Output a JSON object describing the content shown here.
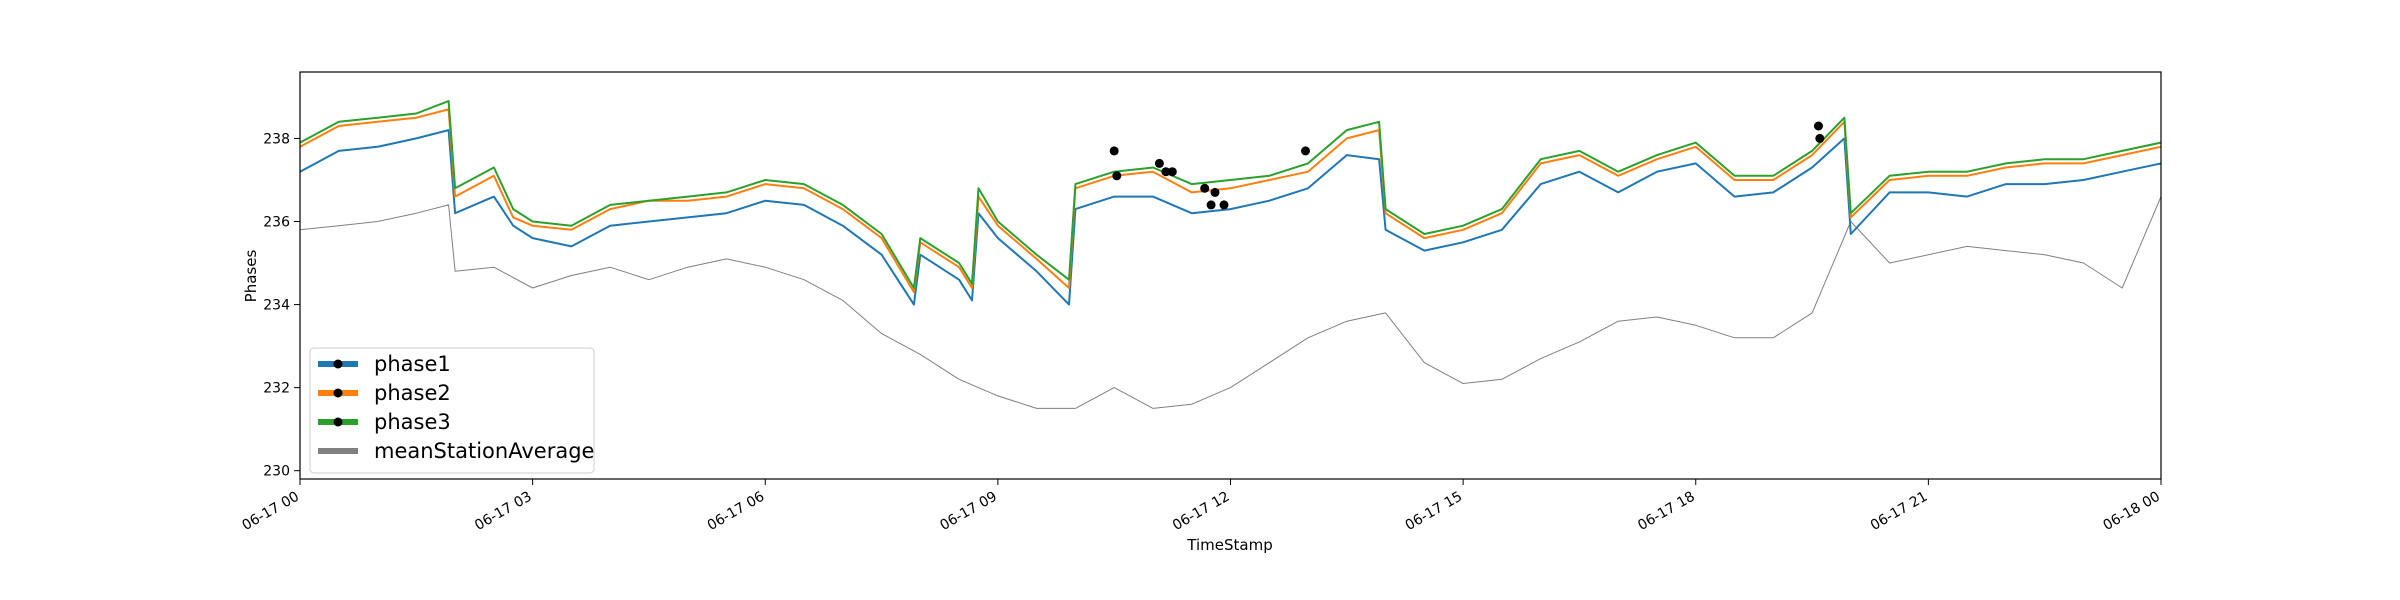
{
  "chart_data": {
    "type": "line",
    "xlabel": "TimeStamp",
    "ylabel": "Phases",
    "xlim": [
      "2017-06-17 00:00",
      "2017-06-18 00:00"
    ],
    "ylim": [
      229.8,
      239.6
    ],
    "x_ticks": [
      {
        "value": "2017-06-17 00:00",
        "label": "06-17 00"
      },
      {
        "value": "2017-06-17 03:00",
        "label": "06-17 03"
      },
      {
        "value": "2017-06-17 06:00",
        "label": "06-17 06"
      },
      {
        "value": "2017-06-17 09:00",
        "label": "06-17 09"
      },
      {
        "value": "2017-06-17 12:00",
        "label": "06-17 12"
      },
      {
        "value": "2017-06-17 15:00",
        "label": "06-17 15"
      },
      {
        "value": "2017-06-17 18:00",
        "label": "06-17 18"
      },
      {
        "value": "2017-06-17 21:00",
        "label": "06-17 21"
      },
      {
        "value": "2017-06-18 00:00",
        "label": "06-18 00"
      }
    ],
    "y_ticks": [
      {
        "value": 230,
        "label": "230"
      },
      {
        "value": 232,
        "label": "232"
      },
      {
        "value": 234,
        "label": "234"
      },
      {
        "value": 236,
        "label": "236"
      },
      {
        "value": 238,
        "label": "238"
      }
    ],
    "legend": {
      "placement": "lower-left"
    },
    "grid": false,
    "series": [
      {
        "name": "phase1",
        "color": "#1f77b4",
        "marker": "black-dot",
        "x": [
          "2017-06-17 00:00",
          "2017-06-17 00:30",
          "2017-06-17 01:00",
          "2017-06-17 01:30",
          "2017-06-17 01:55",
          "2017-06-17 02:00",
          "2017-06-17 02:30",
          "2017-06-17 02:45",
          "2017-06-17 03:00",
          "2017-06-17 03:30",
          "2017-06-17 04:00",
          "2017-06-17 04:30",
          "2017-06-17 05:00",
          "2017-06-17 05:30",
          "2017-06-17 06:00",
          "2017-06-17 06:30",
          "2017-06-17 07:00",
          "2017-06-17 07:30",
          "2017-06-17 07:55",
          "2017-06-17 08:00",
          "2017-06-17 08:30",
          "2017-06-17 08:40",
          "2017-06-17 08:45",
          "2017-06-17 09:00",
          "2017-06-17 09:30",
          "2017-06-17 09:55",
          "2017-06-17 10:00",
          "2017-06-17 10:30",
          "2017-06-17 11:00",
          "2017-06-17 11:30",
          "2017-06-17 12:00",
          "2017-06-17 12:30",
          "2017-06-17 13:00",
          "2017-06-17 13:30",
          "2017-06-17 13:55",
          "2017-06-17 14:00",
          "2017-06-17 14:30",
          "2017-06-17 15:00",
          "2017-06-17 15:30",
          "2017-06-17 16:00",
          "2017-06-17 16:30",
          "2017-06-17 17:00",
          "2017-06-17 17:30",
          "2017-06-17 18:00",
          "2017-06-17 18:30",
          "2017-06-17 19:00",
          "2017-06-17 19:30",
          "2017-06-17 19:55",
          "2017-06-17 20:00",
          "2017-06-17 20:30",
          "2017-06-17 21:00",
          "2017-06-17 21:30",
          "2017-06-17 22:00",
          "2017-06-17 22:30",
          "2017-06-17 23:00",
          "2017-06-17 23:30",
          "2017-06-18 00:00"
        ],
        "values": [
          237.2,
          237.7,
          237.8,
          238.0,
          238.2,
          236.2,
          236.6,
          235.9,
          235.6,
          235.4,
          235.9,
          236.0,
          236.1,
          236.2,
          236.5,
          236.4,
          235.9,
          235.2,
          234.0,
          235.2,
          234.6,
          234.1,
          236.2,
          235.6,
          234.8,
          234.0,
          236.3,
          236.6,
          236.6,
          236.2,
          236.3,
          236.5,
          236.8,
          237.6,
          237.5,
          235.8,
          235.3,
          235.5,
          235.8,
          236.9,
          237.2,
          236.7,
          237.2,
          237.4,
          236.6,
          236.7,
          237.3,
          238.0,
          235.7,
          236.7,
          236.7,
          236.6,
          236.9,
          236.9,
          237.0,
          237.2,
          237.4
        ]
      },
      {
        "name": "phase2",
        "color": "#ff7f0e",
        "marker": "black-dot",
        "x": [
          "2017-06-17 00:00",
          "2017-06-17 00:30",
          "2017-06-17 01:00",
          "2017-06-17 01:30",
          "2017-06-17 01:55",
          "2017-06-17 02:00",
          "2017-06-17 02:30",
          "2017-06-17 02:45",
          "2017-06-17 03:00",
          "2017-06-17 03:30",
          "2017-06-17 04:00",
          "2017-06-17 04:30",
          "2017-06-17 05:00",
          "2017-06-17 05:30",
          "2017-06-17 06:00",
          "2017-06-17 06:30",
          "2017-06-17 07:00",
          "2017-06-17 07:30",
          "2017-06-17 07:55",
          "2017-06-17 08:00",
          "2017-06-17 08:30",
          "2017-06-17 08:40",
          "2017-06-17 08:45",
          "2017-06-17 09:00",
          "2017-06-17 09:30",
          "2017-06-17 09:55",
          "2017-06-17 10:00",
          "2017-06-17 10:30",
          "2017-06-17 11:00",
          "2017-06-17 11:30",
          "2017-06-17 12:00",
          "2017-06-17 12:30",
          "2017-06-17 13:00",
          "2017-06-17 13:30",
          "2017-06-17 13:55",
          "2017-06-17 14:00",
          "2017-06-17 14:30",
          "2017-06-17 15:00",
          "2017-06-17 15:30",
          "2017-06-17 16:00",
          "2017-06-17 16:30",
          "2017-06-17 17:00",
          "2017-06-17 17:30",
          "2017-06-17 18:00",
          "2017-06-17 18:30",
          "2017-06-17 19:00",
          "2017-06-17 19:30",
          "2017-06-17 19:55",
          "2017-06-17 20:00",
          "2017-06-17 20:30",
          "2017-06-17 21:00",
          "2017-06-17 21:30",
          "2017-06-17 22:00",
          "2017-06-17 22:30",
          "2017-06-17 23:00",
          "2017-06-17 23:30",
          "2017-06-18 00:00"
        ],
        "values": [
          237.8,
          238.3,
          238.4,
          238.5,
          238.7,
          236.6,
          237.1,
          236.1,
          235.9,
          235.8,
          236.3,
          236.5,
          236.5,
          236.6,
          236.9,
          236.8,
          236.3,
          235.6,
          234.3,
          235.5,
          234.9,
          234.4,
          236.6,
          235.9,
          235.1,
          234.4,
          236.8,
          237.1,
          237.2,
          236.7,
          236.8,
          237.0,
          237.2,
          238.0,
          238.2,
          236.2,
          235.6,
          235.8,
          236.2,
          237.4,
          237.6,
          237.1,
          237.5,
          237.8,
          237.0,
          237.0,
          237.6,
          238.4,
          236.1,
          237.0,
          237.1,
          237.1,
          237.3,
          237.4,
          237.4,
          237.6,
          237.8
        ]
      },
      {
        "name": "phase3",
        "color": "#2ca02c",
        "marker": "black-dot",
        "x": [
          "2017-06-17 00:00",
          "2017-06-17 00:30",
          "2017-06-17 01:00",
          "2017-06-17 01:30",
          "2017-06-17 01:55",
          "2017-06-17 02:00",
          "2017-06-17 02:30",
          "2017-06-17 02:45",
          "2017-06-17 03:00",
          "2017-06-17 03:30",
          "2017-06-17 04:00",
          "2017-06-17 04:30",
          "2017-06-17 05:00",
          "2017-06-17 05:30",
          "2017-06-17 06:00",
          "2017-06-17 06:30",
          "2017-06-17 07:00",
          "2017-06-17 07:30",
          "2017-06-17 07:55",
          "2017-06-17 08:00",
          "2017-06-17 08:30",
          "2017-06-17 08:40",
          "2017-06-17 08:45",
          "2017-06-17 09:00",
          "2017-06-17 09:30",
          "2017-06-17 09:55",
          "2017-06-17 10:00",
          "2017-06-17 10:30",
          "2017-06-17 11:00",
          "2017-06-17 11:30",
          "2017-06-17 12:00",
          "2017-06-17 12:30",
          "2017-06-17 13:00",
          "2017-06-17 13:30",
          "2017-06-17 13:55",
          "2017-06-17 14:00",
          "2017-06-17 14:30",
          "2017-06-17 15:00",
          "2017-06-17 15:30",
          "2017-06-17 16:00",
          "2017-06-17 16:30",
          "2017-06-17 17:00",
          "2017-06-17 17:30",
          "2017-06-17 18:00",
          "2017-06-17 18:30",
          "2017-06-17 19:00",
          "2017-06-17 19:30",
          "2017-06-17 19:55",
          "2017-06-17 20:00",
          "2017-06-17 20:30",
          "2017-06-17 21:00",
          "2017-06-17 21:30",
          "2017-06-17 22:00",
          "2017-06-17 22:30",
          "2017-06-17 23:00",
          "2017-06-17 23:30",
          "2017-06-18 00:00"
        ],
        "values": [
          237.9,
          238.4,
          238.5,
          238.6,
          238.9,
          236.8,
          237.3,
          236.3,
          236.0,
          235.9,
          236.4,
          236.5,
          236.6,
          236.7,
          237.0,
          236.9,
          236.4,
          235.7,
          234.4,
          235.6,
          235.0,
          234.5,
          236.8,
          236.0,
          235.2,
          234.6,
          236.9,
          237.2,
          237.3,
          236.9,
          237.0,
          237.1,
          237.4,
          238.2,
          238.4,
          236.3,
          235.7,
          235.9,
          236.3,
          237.5,
          237.7,
          237.2,
          237.6,
          237.9,
          237.1,
          237.1,
          237.7,
          238.5,
          236.2,
          237.1,
          237.2,
          237.2,
          237.4,
          237.5,
          237.5,
          237.7,
          237.9
        ]
      },
      {
        "name": "meanStationAverage",
        "color": "#808080",
        "x": [
          "2017-06-17 00:00",
          "2017-06-17 00:30",
          "2017-06-17 01:00",
          "2017-06-17 01:30",
          "2017-06-17 01:55",
          "2017-06-17 02:00",
          "2017-06-17 02:30",
          "2017-06-17 03:00",
          "2017-06-17 03:30",
          "2017-06-17 04:00",
          "2017-06-17 04:30",
          "2017-06-17 05:00",
          "2017-06-17 05:30",
          "2017-06-17 06:00",
          "2017-06-17 06:30",
          "2017-06-17 07:00",
          "2017-06-17 07:30",
          "2017-06-17 08:00",
          "2017-06-17 08:30",
          "2017-06-17 09:00",
          "2017-06-17 09:30",
          "2017-06-17 10:00",
          "2017-06-17 10:30",
          "2017-06-17 11:00",
          "2017-06-17 11:30",
          "2017-06-17 12:00",
          "2017-06-17 12:30",
          "2017-06-17 13:00",
          "2017-06-17 13:30",
          "2017-06-17 14:00",
          "2017-06-17 14:30",
          "2017-06-17 15:00",
          "2017-06-17 15:30",
          "2017-06-17 16:00",
          "2017-06-17 16:30",
          "2017-06-17 17:00",
          "2017-06-17 17:30",
          "2017-06-17 18:00",
          "2017-06-17 18:30",
          "2017-06-17 19:00",
          "2017-06-17 19:30",
          "2017-06-17 20:00",
          "2017-06-17 20:30",
          "2017-06-17 21:00",
          "2017-06-17 21:30",
          "2017-06-17 22:00",
          "2017-06-17 22:30",
          "2017-06-17 23:00",
          "2017-06-17 23:30",
          "2017-06-18 00:00"
        ],
        "values": [
          235.8,
          235.9,
          236.0,
          236.2,
          236.4,
          234.8,
          234.9,
          234.4,
          234.7,
          234.9,
          234.6,
          234.9,
          235.1,
          234.9,
          234.6,
          234.1,
          233.3,
          232.8,
          232.2,
          231.8,
          231.5,
          231.5,
          232.0,
          231.5,
          231.6,
          232.0,
          232.6,
          233.2,
          233.6,
          233.8,
          232.6,
          232.1,
          232.2,
          232.7,
          233.1,
          233.6,
          233.7,
          233.5,
          233.2,
          233.2,
          233.8,
          236.0,
          235.0,
          235.2,
          235.4,
          235.3,
          235.2,
          235.0,
          234.4,
          236.6
        ]
      }
    ],
    "markers": {
      "color": "#000000",
      "points": [
        {
          "x": "2017-06-17 10:30",
          "y": 237.7
        },
        {
          "x": "2017-06-17 10:32",
          "y": 237.1
        },
        {
          "x": "2017-06-17 11:05",
          "y": 237.4
        },
        {
          "x": "2017-06-17 11:10",
          "y": 237.2
        },
        {
          "x": "2017-06-17 11:15",
          "y": 237.2
        },
        {
          "x": "2017-06-17 11:40",
          "y": 236.8
        },
        {
          "x": "2017-06-17 11:45",
          "y": 236.4
        },
        {
          "x": "2017-06-17 11:48",
          "y": 236.7
        },
        {
          "x": "2017-06-17 11:55",
          "y": 236.4
        },
        {
          "x": "2017-06-17 12:58",
          "y": 237.7
        },
        {
          "x": "2017-06-17 19:35",
          "y": 238.3
        },
        {
          "x": "2017-06-17 19:36",
          "y": 238.0
        }
      ]
    }
  }
}
